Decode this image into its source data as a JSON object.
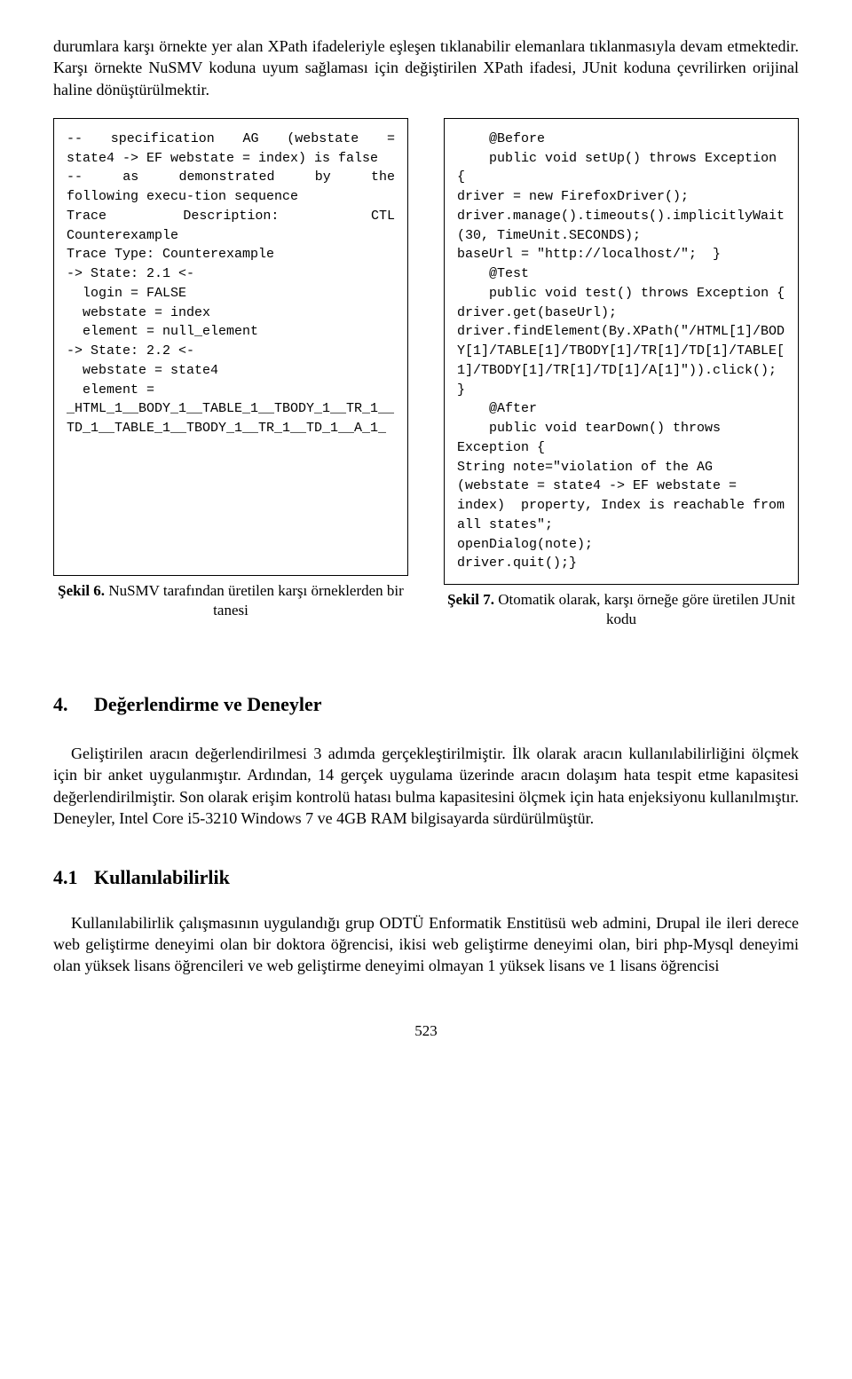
{
  "intro_paragraph": "durumlara karşı örnekte yer alan XPath ifadeleriyle eşleşen tıklanabilir elemanlara tıklanmasıyla devam etmektedir. Karşı örnekte NuSMV koduna uyum sağlaması için değiştirilen XPath ifadesi, JUnit koduna çevrilirken orijinal haline dönüştürülmektir.",
  "figure_left": {
    "code": "--  specification  AG  (webstate  = state4 -> EF webstate = index) is false\n--   as   demonstrated   by   the following execu-tion sequence\nTrace     Description:      CTL Counterexample\nTrace Type: Counterexample\n-> State: 2.1 <-\n  login = FALSE\n  webstate = index\n  element = null_element\n-> State: 2.2 <-\n  webstate = state4\n  element =\n_HTML_1__BODY_1__TABLE_1__TBODY_1__TR_1__TD_1__TABLE_1__TBODY_1__TR_1__TD_1__A_1_",
    "caption_bold": "Şekil 6.",
    "caption_text": " NuSMV tarafından üretilen karşı örneklerden bir tanesi"
  },
  "figure_right": {
    "code": "    @Before\n    public void setUp() throws Exception {\ndriver = new FirefoxDriver();\ndriver.manage().timeouts().implicitlyWait(30, TimeUnit.SECONDS);\nbaseUrl = \"http://localhost/\";  }\n    @Test\n    public void test() throws Exception {\ndriver.get(baseUrl);\ndriver.findElement(By.XPath(\"/HTML[1]/BODY[1]/TABLE[1]/TBODY[1]/TR[1]/TD[1]/TABLE[1]/TBODY[1]/TR[1]/TD[1]/A[1]\")).click();    }\n    @After\n    public void tearDown() throws Exception {\nString note=\"violation of the AG (webstate = state4 -> EF webstate = index)  property, Index is reachable from all states\";\nopenDialog(note);\ndriver.quit();}",
    "caption_bold": "Şekil 7.",
    "caption_text": " Otomatik olarak, karşı örneğe göre üretilen JUnit kodu"
  },
  "section4": {
    "number": "4.",
    "title": "Değerlendirme ve Deneyler",
    "paragraph": "Geliştirilen aracın değerlendirilmesi 3 adımda gerçekleştirilmiştir. İlk olarak aracın kullanılabilirliğini ölçmek için bir anket uygulanmıştır. Ardından, 14 gerçek uygulama üzerinde aracın dolaşım hata tespit etme kapasitesi değerlendirilmiştir. Son olarak erişim kontrolü hatası bulma kapasitesini ölçmek için hata enjeksiyonu kullanılmıştır. Deneyler, Intel Core i5-3210 Windows 7 ve 4GB RAM bilgisayarda sürdürülmüştür."
  },
  "section41": {
    "number": "4.1",
    "title": "Kullanılabilirlik",
    "paragraph": "Kullanılabilirlik çalışmasının uygulandığı grup ODTÜ Enformatik Enstitüsü web admini, Drupal ile ileri derece web geliştirme deneyimi olan bir doktora öğrencisi, ikisi web geliştirme deneyimi olan, biri php-Mysql deneyimi olan yüksek lisans öğrencileri ve web geliştirme deneyimi olmayan 1 yüksek lisans ve 1 lisans öğrencisi"
  },
  "page_number": "523"
}
